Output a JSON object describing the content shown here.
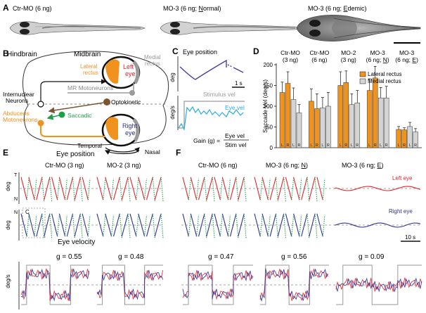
{
  "panels": {
    "a": {
      "letter": "A",
      "fish": [
        {
          "label": "Ctr-MO (6 ng)"
        },
        {
          "label": "MO-3 (6 ng; Normal)",
          "pre": "MO-3 (6 ng; ",
          "key": "N",
          "post": "ormal)"
        },
        {
          "label": "MO-3 (6 ng; Edemic)",
          "pre": "MO-3 (6 ng; ",
          "key": "E",
          "post": "demic)"
        }
      ]
    },
    "b": {
      "letter": "B",
      "hindbrain": "Hindbrain",
      "midbrain": "Midbrain",
      "lateral_rectus": [
        "Lateral",
        "rectus"
      ],
      "medial_rectus": [
        "Medial",
        "rectus"
      ],
      "left_eye": [
        "Left",
        "eye"
      ],
      "right_eye": [
        "Right",
        "eye"
      ],
      "mr_motoneurons": "MR Motoneurons",
      "internuclear": [
        "Internuclear",
        "Neurons"
      ],
      "optokinetic": "Optokinetic",
      "abducens": [
        "Abducens",
        "Motoneurons"
      ],
      "saccadic": "Saccadic",
      "temporal": "Temporal",
      "nasal": "Nasal"
    },
    "c": {
      "letter": "C",
      "eye_position": "Eye position",
      "deg": "deg",
      "degs": "deg/s",
      "scale": "1 s",
      "stimulus_vel": "Stimulus vel",
      "eye_vel": [
        "Eye",
        "vel"
      ],
      "gain_label": "Gain (g) =",
      "gain_num": "Eye vel",
      "gain_den": "Stim vel"
    },
    "d": {
      "letter": "D",
      "legend": [
        "Lateral rectus",
        "Medial rectus"
      ]
    },
    "e": {
      "letter": "E",
      "title": "Eye position",
      "groups": [
        "Ctr-MO (3 ng)",
        "MO-2 (3 ng)"
      ],
      "deg": "deg",
      "t": "T",
      "n": "N",
      "c_ref": "C",
      "vel_title": "Eye velocity",
      "vel_unit": "deg/s",
      "gains": [
        "g = 0.55",
        "g = 0.48"
      ]
    },
    "f": {
      "letter": "F",
      "groups": [
        {
          "label": "Ctr-MO (6 ng)"
        },
        {
          "label": "MO-3 (6 ng; N)",
          "pre": "MO-3 (6 ng; ",
          "key": "N",
          "post": ")"
        },
        {
          "label": "MO-3 (6 ng; E)",
          "pre": "MO-3 (6 ng; ",
          "key": "E",
          "post": ")"
        }
      ],
      "left_eye": "Left eye",
      "right_eye": "Right eye",
      "scale": "10 s",
      "gains": [
        "g = 0.47",
        "g = 0.56",
        "g = 0.09"
      ]
    }
  },
  "chart_data": {
    "type": "bar",
    "categories": [
      {
        "line1": "Ctr-MO",
        "line2": "(3 ng)",
        "key": ""
      },
      {
        "line1": "Ctr-MO",
        "line2": "(6 ng)",
        "key": ""
      },
      {
        "line1": "MO-2",
        "line2": "(3 ng)",
        "key": ""
      },
      {
        "line1": "MO-3",
        "line2": "(6 ng; N)",
        "pre": "(6 ng; ",
        "key": "N",
        "post": ")"
      },
      {
        "line1": "MO-3",
        "line2": "(6 ng; E)",
        "pre": "(6 ng; ",
        "key": "E",
        "post": ")"
      }
    ],
    "bar_labels": [
      "L",
      "R",
      "L",
      "R"
    ],
    "series": [
      {
        "name": "Lateral rectus",
        "color": "#f0921e",
        "values": [
          [
            133,
            155
          ],
          [
            112,
            94
          ],
          [
            150,
            157
          ],
          [
            138,
            168
          ],
          [
            44,
            43
          ]
        ],
        "errors": [
          [
            25,
            28
          ],
          [
            30,
            36
          ],
          [
            33,
            28
          ],
          [
            28,
            28
          ],
          [
            7,
            5
          ]
        ]
      },
      {
        "name": "Medial rectus",
        "color": "#d4d4d4",
        "values": [
          [
            116,
            84
          ],
          [
            96,
            100
          ],
          [
            104,
            108
          ],
          [
            120,
            120
          ],
          [
            51,
            38
          ]
        ],
        "errors": [
          [
            28,
            20
          ],
          [
            25,
            33
          ],
          [
            26,
            30
          ],
          [
            25,
            28
          ],
          [
            10,
            8
          ]
        ]
      }
    ],
    "ylabel": "Saccade Vel (deg/s)",
    "yticks": [
      0,
      50,
      100,
      150,
      200
    ],
    "ylim": [
      0,
      200
    ],
    "grid": false
  },
  "colors": {
    "orange": "#f0921e",
    "red": "#e8212b",
    "green": "#1f9e4a",
    "blue": "#2e3192",
    "navy": "#2e3192",
    "cyan": "#29abe2",
    "brown": "#7b5530",
    "grey": "#9a9a9a",
    "purple": "#4a3fa0"
  }
}
